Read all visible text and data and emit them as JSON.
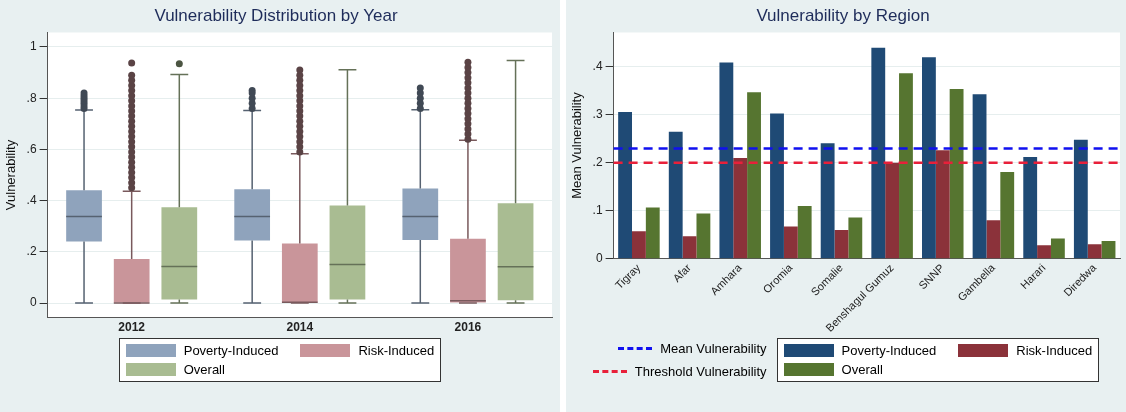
{
  "chart_data": [
    {
      "type": "box",
      "title": "Vulnerability Distribution by Year",
      "ylabel": "Vulnerability",
      "categories": [
        "2012",
        "2014",
        "2016"
      ],
      "series": [
        {
          "name": "Poverty-Induced",
          "color": "#8fa3bc",
          "boxes": [
            {
              "low": 0,
              "q1": 0.24,
              "median": 0.338,
              "q3": 0.44,
              "high": 0.754,
              "outliers": [
                0.76,
                0.77,
                0.78,
                0.79,
                0.8,
                0.81,
                0.82
              ]
            },
            {
              "low": 0,
              "q1": 0.244,
              "median": 0.338,
              "q3": 0.444,
              "high": 0.752,
              "outliers": [
                0.76,
                0.78,
                0.8,
                0.82,
                0.83
              ]
            },
            {
              "low": 0,
              "q1": 0.246,
              "median": 0.338,
              "q3": 0.447,
              "high": 0.755,
              "outliers": [
                0.76,
                0.78,
                0.8,
                0.82,
                0.84
              ]
            }
          ]
        },
        {
          "name": "Risk-Induced",
          "color": "#c9959a",
          "boxes": [
            {
              "low": 0,
              "q1": 0,
              "median": 0,
              "q3": 0.172,
              "high": 0.437,
              "outliers": [
                0.45,
                0.47,
                0.49,
                0.51,
                0.53,
                0.55,
                0.57,
                0.59,
                0.61,
                0.63,
                0.65,
                0.67,
                0.69,
                0.71,
                0.73,
                0.75,
                0.77,
                0.79,
                0.81,
                0.83,
                0.85,
                0.87,
                0.89,
                0.937
              ]
            },
            {
              "low": 0,
              "q1": 0,
              "median": 0.003,
              "q3": 0.232,
              "high": 0.583,
              "outliers": [
                0.59,
                0.61,
                0.63,
                0.65,
                0.67,
                0.69,
                0.71,
                0.73,
                0.75,
                0.77,
                0.79,
                0.81,
                0.83,
                0.85,
                0.87,
                0.89,
                0.91
              ]
            },
            {
              "low": 0,
              "q1": 0,
              "median": 0.009,
              "q3": 0.251,
              "high": 0.636,
              "outliers": [
                0.64,
                0.66,
                0.68,
                0.7,
                0.72,
                0.74,
                0.76,
                0.78,
                0.8,
                0.82,
                0.84,
                0.86,
                0.88,
                0.9,
                0.92,
                0.94
              ]
            }
          ]
        },
        {
          "name": "Overall",
          "color": "#a9bc92",
          "boxes": [
            {
              "low": 0,
              "q1": 0.014,
              "median": 0.143,
              "q3": 0.374,
              "high": 0.893,
              "outliers": [
                0.935
              ]
            },
            {
              "low": 0,
              "q1": 0.014,
              "median": 0.15,
              "q3": 0.381,
              "high": 0.911
            },
            {
              "low": 0,
              "q1": 0.011,
              "median": 0.142,
              "q3": 0.39,
              "high": 0.947
            }
          ]
        }
      ],
      "ylim": [
        -0.057,
        1.057
      ],
      "yticks": [
        {
          "value": 0,
          "label": "0"
        },
        {
          "value": 0.2,
          "label": ".2"
        },
        {
          "value": 0.4,
          "label": ".4"
        },
        {
          "value": 0.6,
          "label": ".6"
        },
        {
          "value": 0.8,
          "label": ".8"
        },
        {
          "value": 1,
          "label": "1"
        }
      ],
      "grid": "y",
      "legend": "bottom"
    },
    {
      "type": "bar",
      "title": "Vulnerability by Region",
      "ylabel": "Mean Vulnerability",
      "categories": [
        "Tigray",
        "Afar",
        "Amhara",
        "Oromia",
        "Somalie",
        "Benshagul Gumuz",
        "SNNP",
        "Gambella",
        "Harari",
        "Diredwa"
      ],
      "series": [
        {
          "name": "Poverty-Induced",
          "color": "#1f4a75",
          "values": [
            0.306,
            0.265,
            0.409,
            0.303,
            0.241,
            0.44,
            0.42,
            0.343,
            0.212,
            0.248
          ]
        },
        {
          "name": "Risk-Induced",
          "color": "#8b323a",
          "values": [
            0.057,
            0.047,
            0.21,
            0.067,
            0.06,
            0.2,
            0.226,
            0.08,
            0.028,
            0.03
          ]
        },
        {
          "name": "Overall",
          "color": "#567530",
          "values": [
            0.107,
            0.094,
            0.347,
            0.11,
            0.086,
            0.387,
            0.354,
            0.181,
            0.042,
            0.037
          ]
        }
      ],
      "ylim": [
        0,
        0.472
      ],
      "yticks": [
        {
          "value": 0,
          "label": "0"
        },
        {
          "value": 0.1,
          "label": ".1"
        },
        {
          "value": 0.2,
          "label": ".2"
        },
        {
          "value": 0.3,
          "label": ".3"
        },
        {
          "value": 0.4,
          "label": ".4"
        }
      ],
      "ref_lines": [
        {
          "axis": "y",
          "value": 0.23,
          "label": "Mean Vulnerability",
          "color": "#1010f0",
          "line_style": "dashed"
        },
        {
          "axis": "y",
          "value": 0.2,
          "label": "Threshold Vulnerability",
          "color": "#e8203a",
          "line_style": "dashed"
        }
      ],
      "grid": "y",
      "legend": "bottom"
    }
  ]
}
